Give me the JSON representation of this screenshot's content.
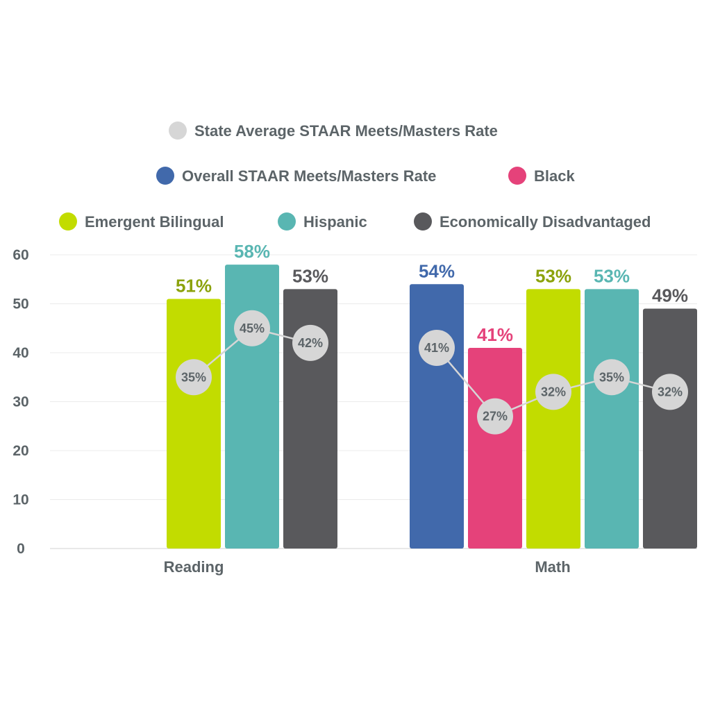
{
  "chart_data": {
    "type": "bar",
    "categories": [
      "Reading",
      "Math"
    ],
    "ylim": [
      0,
      60
    ],
    "yticks": [
      0,
      10,
      20,
      30,
      40,
      50,
      60
    ],
    "grid": true,
    "legend_position": "top",
    "series": [
      {
        "name": "Overall STAAR Meets/Masters Rate",
        "color": "#4169ab",
        "values": [
          null,
          54
        ],
        "labels": [
          "",
          "54%"
        ]
      },
      {
        "name": "Black",
        "color": "#e5427a",
        "values": [
          null,
          41
        ],
        "labels": [
          "",
          "41%"
        ]
      },
      {
        "name": "Emergent Bilingual",
        "color": "#c2dc00",
        "label_color": "#8ba20b",
        "values": [
          51,
          53
        ],
        "labels": [
          "51%",
          "53%"
        ]
      },
      {
        "name": "Hispanic",
        "color": "#59b6b2",
        "values": [
          58,
          53
        ],
        "labels": [
          "58%",
          "53%"
        ]
      },
      {
        "name": "Economically Disadvantaged",
        "color": "#59595c",
        "values": [
          53,
          49
        ],
        "labels": [
          "53%",
          "49%"
        ]
      }
    ],
    "state_average": {
      "name": "State Average STAAR Meets/Masters Rate",
      "color": "#d6d6d6",
      "values": [
        [
          null,
          null,
          35,
          45,
          42
        ],
        [
          41,
          27,
          32,
          35,
          32
        ]
      ],
      "labels": [
        [
          "",
          "",
          "35%",
          "45%",
          "42%"
        ],
        [
          "41%",
          "27%",
          "32%",
          "35%",
          "32%"
        ]
      ]
    }
  }
}
